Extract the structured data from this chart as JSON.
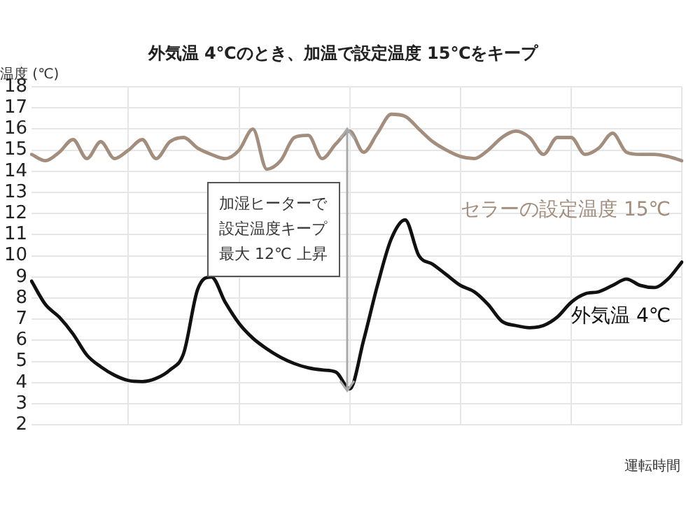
{
  "chart_data": {
    "type": "line",
    "title": "外気温 4℃のとき、加温で設定温度 15℃をキープ",
    "ylabel": "温度 (℃)",
    "xlabel": "運転時間",
    "annotations": [
      "加湿ヒーターで",
      "設定温度キープ",
      "最大 12℃ 上昇"
    ],
    "categories": [
      null,
      null,
      null,
      null,
      null,
      null,
      null,
      null,
      null,
      null,
      null,
      null,
      null,
      null,
      null,
      null,
      null,
      null,
      null,
      null,
      null,
      null,
      null,
      null,
      null,
      null,
      null,
      null,
      null,
      null,
      null,
      null,
      null,
      null,
      null,
      null,
      null,
      null,
      null,
      null,
      null,
      null,
      null,
      null,
      null,
      null,
      null,
      null
    ],
    "series": [
      {
        "name": "セラーの設定温度 15℃",
        "color": "#a38d7d",
        "values": [
          14.8,
          14.5,
          14.9,
          15.5,
          14.6,
          15.4,
          14.6,
          15.0,
          15.5,
          14.6,
          15.4,
          15.6,
          15.1,
          14.8,
          14.6,
          15.0,
          16.0,
          14.1,
          14.5,
          15.6,
          15.7,
          14.6,
          15.3,
          15.9,
          14.9,
          15.8,
          16.7,
          16.6,
          16.0,
          15.4,
          15.0,
          14.7,
          14.6,
          15.0,
          15.6,
          15.9,
          15.6,
          14.8,
          15.6,
          15.6,
          14.8,
          15.1,
          15.8,
          14.9,
          14.8,
          14.8,
          14.7,
          14.5
        ]
      },
      {
        "name": "外気温 4℃",
        "color": "#111111",
        "values": [
          8.8,
          7.7,
          7.1,
          6.3,
          5.3,
          4.75,
          4.35,
          4.1,
          4.05,
          4.2,
          4.6,
          5.4,
          8.4,
          9.0,
          7.8,
          6.8,
          6.1,
          5.6,
          5.2,
          4.9,
          4.7,
          4.6,
          4.5,
          3.7,
          6.0,
          8.6,
          10.8,
          11.7,
          10.0,
          9.6,
          9.1,
          8.6,
          8.3,
          7.7,
          6.9,
          6.7,
          6.6,
          6.7,
          7.1,
          7.8,
          8.2,
          8.3,
          8.6,
          8.9,
          8.6,
          8.5,
          8.9,
          9.7
        ]
      }
    ],
    "ylim": [
      2,
      18
    ],
    "yticks": [
      2,
      3,
      4,
      5,
      6,
      7,
      8,
      9,
      10,
      11,
      12,
      13,
      14,
      15,
      16,
      17,
      18
    ],
    "grid": true,
    "legend": false,
    "marker": "none",
    "line_style": "solid"
  }
}
